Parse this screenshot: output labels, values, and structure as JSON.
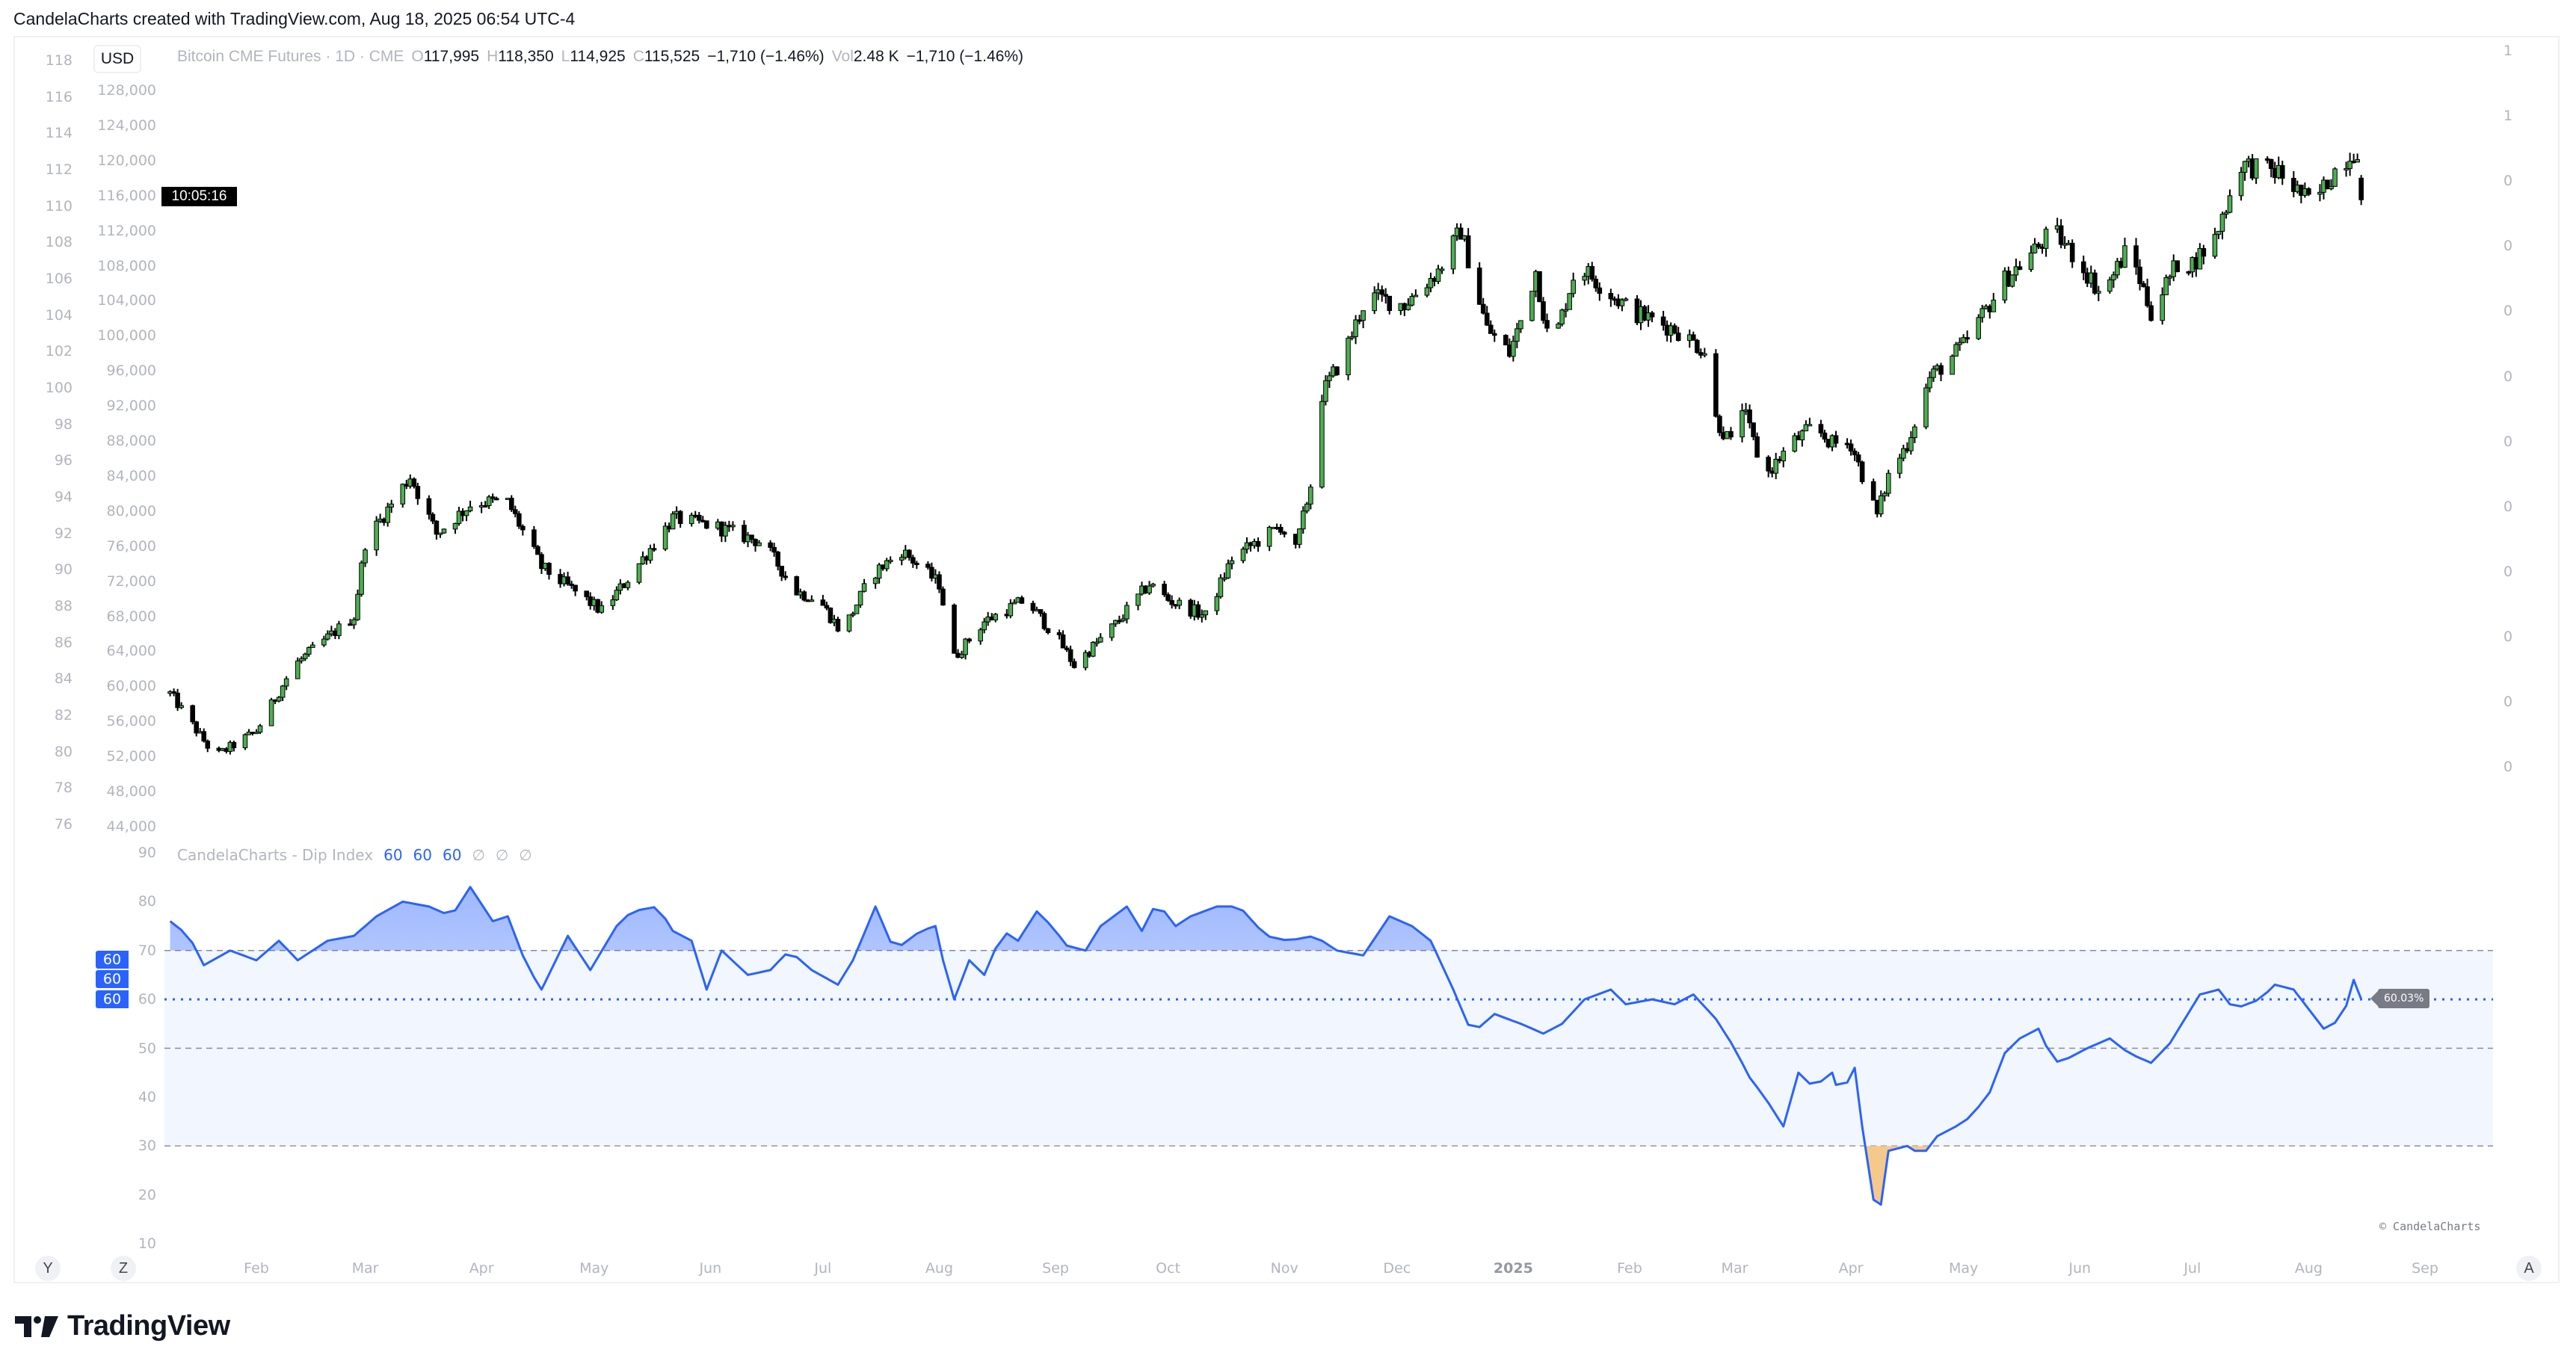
{
  "header": {
    "credit": "CandelaCharts created with TradingView.com, Aug 18, 2025 06:54 UTC-4"
  },
  "toolbar": {
    "currency": "USD",
    "countdown": "10:05:16",
    "btn_y": "Y",
    "btn_z": "Z",
    "btn_auto": "A"
  },
  "legend": {
    "symbol": "Bitcoin CME Futures · 1D · CME",
    "o_label": "O",
    "o": "117,995",
    "h_label": "H",
    "h": "118,350",
    "l_label": "L",
    "l": "114,925",
    "c_label": "C",
    "c": "115,525",
    "change": "−1,710 (−1.46%)",
    "vol_label": "Vol",
    "vol": "2.48 K",
    "vol_change": "−1,710 (−1.46%)"
  },
  "indicator": {
    "name": "CandelaCharts - Dip Index",
    "params": [
      "60",
      "60",
      "60"
    ],
    "empty_params": [
      "∅",
      "∅",
      "∅"
    ],
    "badges": [
      "60",
      "60",
      "60"
    ],
    "last_value": "60.03%",
    "copyright": "© CandelaCharts"
  },
  "brand": {
    "name": "TradingView"
  },
  "colors": {
    "up": "#4caf50",
    "down": "#000000",
    "line": "#2962ff",
    "band": "#f2f6ff",
    "below": "#f5c98a"
  },
  "chart_data": [
    {
      "type": "candlestick",
      "title": "Bitcoin CME Futures · 1D · CME",
      "ylim": [
        44000,
        128000
      ],
      "y_ticks": [
        "128,000",
        "124,000",
        "120,000",
        "116,000",
        "112,000",
        "108,000",
        "104,000",
        "100,000",
        "96,000",
        "92,000",
        "88,000",
        "84,000",
        "80,000",
        "76,000",
        "72,000",
        "68,000",
        "64,000",
        "60,000",
        "56,000",
        "52,000",
        "48,000",
        "44,000"
      ],
      "y_ticks_secondary": [
        "118",
        "116",
        "114",
        "112",
        "110",
        "108",
        "106",
        "104",
        "102",
        "100",
        "98",
        "96",
        "94",
        "92",
        "90",
        "88",
        "86",
        "84",
        "82",
        "80",
        "78",
        "76"
      ],
      "y_ticks_right": [
        "1",
        "1",
        "0",
        "0",
        "0",
        "0",
        "0",
        "0",
        "0",
        "0",
        "0",
        "0"
      ],
      "x_ticks": [
        [
          "2024-02-01",
          "Feb"
        ],
        [
          "2024-03-01",
          "Mar"
        ],
        [
          "2024-04-01",
          "Apr"
        ],
        [
          "2024-05-01",
          "May"
        ],
        [
          "2024-06-01",
          "Jun"
        ],
        [
          "2024-07-01",
          "Jul"
        ],
        [
          "2024-08-01",
          "Aug"
        ],
        [
          "2024-09-01",
          "Sep"
        ],
        [
          "2024-10-01",
          "Oct"
        ],
        [
          "2024-11-01",
          "Nov"
        ],
        [
          "2024-12-01",
          "Dec"
        ],
        [
          "2025-01-01",
          "2025"
        ],
        [
          "2025-02-01",
          "Feb"
        ],
        [
          "2025-03-01",
          "Mar"
        ],
        [
          "2025-04-01",
          "Apr"
        ],
        [
          "2025-05-01",
          "May"
        ],
        [
          "2025-06-01",
          "Jun"
        ],
        [
          "2025-07-01",
          "Jul"
        ],
        [
          "2025-08-01",
          "Aug"
        ],
        [
          "2025-09-01",
          "Sep"
        ]
      ],
      "last_bar": {
        "date": "2025-08-15",
        "open": 117995,
        "high": 118350,
        "low": 114925,
        "close": 115525
      },
      "close_path": [
        [
          "2024-01-09",
          59200
        ],
        [
          "2024-01-21",
          52000
        ],
        [
          "2024-02-01",
          54900
        ],
        [
          "2024-02-11",
          62400
        ],
        [
          "2024-02-27",
          68000
        ],
        [
          "2024-03-01",
          76400
        ],
        [
          "2024-03-13",
          84000
        ],
        [
          "2024-03-20",
          77400
        ],
        [
          "2024-03-30",
          81100
        ],
        [
          "2024-04-08",
          81000
        ],
        [
          "2024-04-17",
          73600
        ],
        [
          "2024-05-03",
          68600
        ],
        [
          "2024-05-09",
          71700
        ],
        [
          "2024-05-22",
          79200
        ],
        [
          "2024-06-02",
          78300
        ],
        [
          "2024-06-15",
          76400
        ],
        [
          "2024-06-24",
          70800
        ],
        [
          "2024-06-30",
          69900
        ],
        [
          "2024-07-06",
          66100
        ],
        [
          "2024-07-14",
          72700
        ],
        [
          "2024-07-22",
          75500
        ],
        [
          "2024-08-01",
          71700
        ],
        [
          "2024-08-05",
          63300
        ],
        [
          "2024-08-13",
          67400
        ],
        [
          "2024-08-24",
          69900
        ],
        [
          "2024-09-02",
          65200
        ],
        [
          "2024-09-06",
          62400
        ],
        [
          "2024-09-17",
          67100
        ],
        [
          "2024-09-26",
          71700
        ],
        [
          "2024-10-01",
          69900
        ],
        [
          "2024-10-11",
          68000
        ],
        [
          "2024-10-18",
          74600
        ],
        [
          "2024-10-31",
          78300
        ],
        [
          "2024-11-04",
          75500
        ],
        [
          "2024-11-08",
          83000
        ],
        [
          "2024-11-11",
          93300
        ],
        [
          "2024-11-17",
          98000
        ],
        [
          "2024-11-23",
          104600
        ],
        [
          "2024-12-03",
          103600
        ],
        [
          "2024-12-12",
          107400
        ],
        [
          "2024-12-18",
          112000
        ],
        [
          "2024-12-25",
          100800
        ],
        [
          "2024-12-31",
          98000
        ],
        [
          "2025-01-03",
          101700
        ],
        [
          "2025-01-07",
          107400
        ],
        [
          "2025-01-11",
          98000
        ],
        [
          "2025-01-18",
          108300
        ],
        [
          "2025-01-25",
          105500
        ],
        [
          "2025-02-02",
          102700
        ],
        [
          "2025-02-13",
          100800
        ],
        [
          "2025-02-22",
          98000
        ],
        [
          "2025-02-24",
          90500
        ],
        [
          "2025-02-28",
          87700
        ],
        [
          "2025-03-02",
          93300
        ],
        [
          "2025-03-09",
          83900
        ],
        [
          "2025-03-16",
          87700
        ],
        [
          "2025-03-22",
          89600
        ],
        [
          "2025-03-27",
          87700
        ],
        [
          "2025-04-01",
          87700
        ],
        [
          "2025-04-08",
          79500
        ],
        [
          "2025-04-11",
          84000
        ],
        [
          "2025-04-16",
          87700
        ],
        [
          "2025-04-22",
          95200
        ],
        [
          "2025-05-01",
          98900
        ],
        [
          "2025-05-12",
          106400
        ],
        [
          "2025-05-21",
          110200
        ],
        [
          "2025-05-25",
          112000
        ],
        [
          "2025-06-01",
          108300
        ],
        [
          "2025-06-07",
          104600
        ],
        [
          "2025-06-14",
          110200
        ],
        [
          "2025-06-20",
          102700
        ],
        [
          "2025-06-27",
          108300
        ],
        [
          "2025-07-01",
          108300
        ],
        [
          "2025-07-07",
          111100
        ],
        [
          "2025-07-10",
          114900
        ],
        [
          "2025-07-14",
          119600
        ],
        [
          "2025-07-24",
          118600
        ],
        [
          "2025-08-02",
          114900
        ],
        [
          "2025-08-09",
          119600
        ],
        [
          "2025-08-14",
          121400
        ],
        [
          "2025-08-15",
          115525
        ]
      ]
    },
    {
      "type": "line",
      "title": "CandelaCharts - Dip Index",
      "ylim": [
        10,
        90
      ],
      "y_ticks": [
        "90",
        "80",
        "70",
        "60",
        "50",
        "40",
        "30",
        "20",
        "10"
      ],
      "levels": {
        "upper": 70,
        "mid": 50,
        "lower": 30,
        "signal": 60
      },
      "series": [
        [
          "2024-01-09",
          76
        ],
        [
          "2024-01-14",
          73
        ],
        [
          "2024-01-18",
          67
        ],
        [
          "2024-01-25",
          70
        ],
        [
          "2024-02-01",
          68
        ],
        [
          "2024-02-07",
          72
        ],
        [
          "2024-02-12",
          68
        ],
        [
          "2024-02-20",
          72
        ],
        [
          "2024-02-27",
          73
        ],
        [
          "2024-03-04",
          77
        ],
        [
          "2024-03-11",
          80
        ],
        [
          "2024-03-18",
          79
        ],
        [
          "2024-03-24",
          77
        ],
        [
          "2024-03-29",
          83
        ],
        [
          "2024-04-04",
          76
        ],
        [
          "2024-04-08",
          77
        ],
        [
          "2024-04-13",
          67
        ],
        [
          "2024-04-17",
          62
        ],
        [
          "2024-04-24",
          73
        ],
        [
          "2024-04-30",
          66
        ],
        [
          "2024-05-07",
          75
        ],
        [
          "2024-05-11",
          78
        ],
        [
          "2024-05-18",
          79
        ],
        [
          "2024-05-22",
          74
        ],
        [
          "2024-05-27",
          72
        ],
        [
          "2024-05-31",
          62
        ],
        [
          "2024-06-04",
          70
        ],
        [
          "2024-06-11",
          65
        ],
        [
          "2024-06-17",
          66
        ],
        [
          "2024-06-22",
          70
        ],
        [
          "2024-06-28",
          66
        ],
        [
          "2024-07-05",
          63
        ],
        [
          "2024-07-09",
          68
        ],
        [
          "2024-07-15",
          79
        ],
        [
          "2024-07-20",
          70
        ],
        [
          "2024-07-27",
          74
        ],
        [
          "2024-07-31",
          75
        ],
        [
          "2024-08-02",
          68
        ],
        [
          "2024-08-05",
          60
        ],
        [
          "2024-08-09",
          68
        ],
        [
          "2024-08-13",
          65
        ],
        [
          "2024-08-18",
          74
        ],
        [
          "2024-08-22",
          72
        ],
        [
          "2024-08-27",
          78
        ],
        [
          "2024-08-31",
          75
        ],
        [
          "2024-09-04",
          71
        ],
        [
          "2024-09-09",
          70
        ],
        [
          "2024-09-13",
          75
        ],
        [
          "2024-09-20",
          79
        ],
        [
          "2024-09-24",
          74
        ],
        [
          "2024-09-28",
          80
        ],
        [
          "2024-10-03",
          75
        ],
        [
          "2024-10-07",
          77
        ],
        [
          "2024-10-14",
          79
        ],
        [
          "2024-10-20",
          79
        ],
        [
          "2024-10-27",
          73
        ],
        [
          "2024-11-02",
          72
        ],
        [
          "2024-11-09",
          73
        ],
        [
          "2024-11-15",
          70
        ],
        [
          "2024-11-22",
          69
        ],
        [
          "2024-11-29",
          77
        ],
        [
          "2024-12-05",
          75
        ],
        [
          "2024-12-10",
          72
        ],
        [
          "2024-12-16",
          62
        ],
        [
          "2024-12-21",
          53
        ],
        [
          "2024-12-27",
          57
        ],
        [
          "2025-01-03",
          55
        ],
        [
          "2025-01-09",
          53
        ],
        [
          "2025-01-14",
          55
        ],
        [
          "2025-01-20",
          60
        ],
        [
          "2025-01-27",
          62
        ],
        [
          "2025-01-31",
          59
        ],
        [
          "2025-02-07",
          60
        ],
        [
          "2025-02-13",
          59
        ],
        [
          "2025-02-18",
          61
        ],
        [
          "2025-02-24",
          56
        ],
        [
          "2025-03-01",
          50
        ],
        [
          "2025-03-05",
          44
        ],
        [
          "2025-03-09",
          40
        ],
        [
          "2025-03-14",
          34
        ],
        [
          "2025-03-18",
          45
        ],
        [
          "2025-03-22",
          42
        ],
        [
          "2025-03-27",
          45
        ],
        [
          "2025-03-29",
          40
        ],
        [
          "2025-04-02",
          46
        ],
        [
          "2025-04-05",
          28
        ],
        [
          "2025-04-07",
          19
        ],
        [
          "2025-04-09",
          18
        ],
        [
          "2025-04-11",
          29
        ],
        [
          "2025-04-16",
          30
        ],
        [
          "2025-04-20",
          28
        ],
        [
          "2025-04-24",
          32
        ],
        [
          "2025-04-29",
          34
        ],
        [
          "2025-05-03",
          36
        ],
        [
          "2025-05-08",
          41
        ],
        [
          "2025-05-12",
          49
        ],
        [
          "2025-05-16",
          52
        ],
        [
          "2025-05-21",
          54
        ],
        [
          "2025-05-25",
          47
        ],
        [
          "2025-05-29",
          48
        ],
        [
          "2025-06-03",
          50
        ],
        [
          "2025-06-09",
          52
        ],
        [
          "2025-06-14",
          49
        ],
        [
          "2025-06-20",
          47
        ],
        [
          "2025-06-25",
          51
        ],
        [
          "2025-06-29",
          56
        ],
        [
          "2025-07-03",
          61
        ],
        [
          "2025-07-08",
          62
        ],
        [
          "2025-07-12",
          58
        ],
        [
          "2025-07-19",
          60
        ],
        [
          "2025-07-23",
          63
        ],
        [
          "2025-07-28",
          62
        ],
        [
          "2025-08-01",
          58
        ],
        [
          "2025-08-05",
          54
        ],
        [
          "2025-08-10",
          56
        ],
        [
          "2025-08-13",
          64
        ],
        [
          "2025-08-15",
          60.03
        ]
      ]
    }
  ]
}
